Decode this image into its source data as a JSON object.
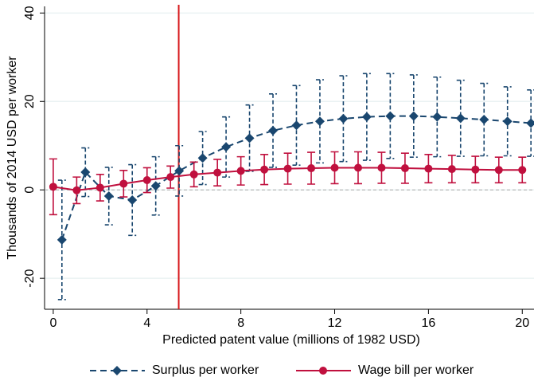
{
  "chart_data": {
    "type": "line",
    "x_label": "Predicted patent value (millions of 1982 USD)",
    "y_label": "Thousands of 2014 USD per worker",
    "xlim": [
      -0.37,
      20.5
    ],
    "ylim": [
      -27,
      41.5
    ],
    "xticks": [
      0,
      4,
      8,
      12,
      16,
      20
    ],
    "yticks": [
      -20,
      0,
      20,
      40
    ],
    "grid": true,
    "vline": {
      "x": 5.35,
      "color": "#d7191c"
    },
    "hline": {
      "y": 0,
      "color": "#aaaaaa"
    },
    "legend_position": "bottom",
    "series": [
      {
        "name": "Surplus per worker",
        "color": "#1a476f",
        "marker": "diamond",
        "line_style": "dashed",
        "x": [
          0.37,
          1.37,
          2.37,
          3.37,
          4.37,
          5.37,
          6.37,
          7.37,
          8.37,
          9.37,
          10.37,
          11.37,
          12.37,
          13.37,
          14.37,
          15.37,
          16.37,
          17.37,
          18.37,
          19.37,
          20.37
        ],
        "values": [
          -11.3,
          4,
          -1.4,
          -2.3,
          0.9,
          4.3,
          7.2,
          9.7,
          11.7,
          13.4,
          14.6,
          15.5,
          16.1,
          16.5,
          16.7,
          16.7,
          16.5,
          16.2,
          15.9,
          15.5,
          15.1
        ],
        "errors": [
          13.5,
          5.5,
          6.5,
          8,
          6.6,
          5.7,
          6,
          6.8,
          7.5,
          8.3,
          9,
          9.4,
          9.7,
          9.8,
          9.6,
          9.3,
          9,
          8.6,
          8.2,
          7.8,
          7.5
        ]
      },
      {
        "name": "Wage bill per worker",
        "color": "#c0103e",
        "marker": "circle",
        "line_style": "solid",
        "x": [
          0,
          1,
          2,
          3,
          4,
          5,
          6,
          7,
          8,
          9,
          10,
          11,
          12,
          13,
          14,
          15,
          16,
          17,
          18,
          19,
          20
        ],
        "values": [
          0.7,
          -0.1,
          0.5,
          1.4,
          2.2,
          2.9,
          3.5,
          3.9,
          4.3,
          4.6,
          4.8,
          4.9,
          5,
          5,
          5,
          4.9,
          4.8,
          4.7,
          4.6,
          4.5,
          4.5
        ],
        "errors": [
          6.3,
          3,
          3,
          3,
          2.8,
          2.5,
          2.8,
          3,
          3.2,
          3.4,
          3.5,
          3.6,
          3.6,
          3.6,
          3.5,
          3.4,
          3.2,
          3.1,
          3,
          2.9,
          2.9
        ]
      }
    ]
  }
}
